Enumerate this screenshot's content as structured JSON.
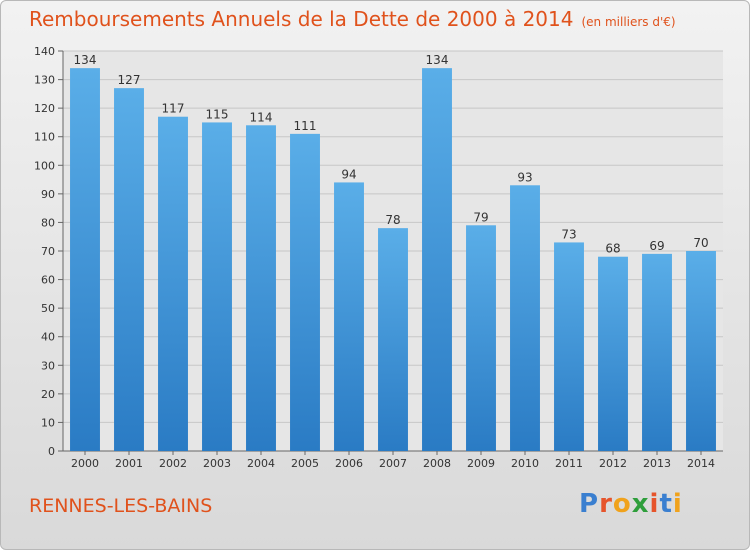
{
  "chart_data": {
    "type": "bar",
    "title": "Remboursements Annuels de la Dette de 2000 à 2014",
    "subtitle": "(en milliers d'€)",
    "categories": [
      "2000",
      "2001",
      "2002",
      "2003",
      "2004",
      "2005",
      "2006",
      "2007",
      "2008",
      "2009",
      "2010",
      "2011",
      "2012",
      "2013",
      "2014"
    ],
    "values": [
      134,
      127,
      117,
      115,
      114,
      111,
      94,
      78,
      134,
      79,
      93,
      73,
      68,
      69,
      70
    ],
    "ylim": [
      0,
      140
    ],
    "yticks": [
      0,
      10,
      20,
      30,
      40,
      50,
      60,
      70,
      80,
      90,
      100,
      110,
      120,
      130,
      140
    ],
    "grid": true,
    "bar_color_top": "#5aaee8",
    "bar_color_bottom": "#2a7bc4",
    "grid_color": "#c7c7c7"
  },
  "place_name": "RENNES-LES-BAINS",
  "logo": {
    "text": "Proxiti",
    "letters": [
      {
        "ch": "P",
        "color": "#3a7fd0"
      },
      {
        "ch": "r",
        "color": "#e6542b"
      },
      {
        "ch": "o",
        "color": "#f0a21c"
      },
      {
        "ch": "x",
        "color": "#2e9e3b"
      },
      {
        "ch": "i",
        "color": "#e6542b"
      },
      {
        "ch": "t",
        "color": "#3a7fd0"
      },
      {
        "ch": "i",
        "color": "#f0a21c"
      }
    ]
  }
}
